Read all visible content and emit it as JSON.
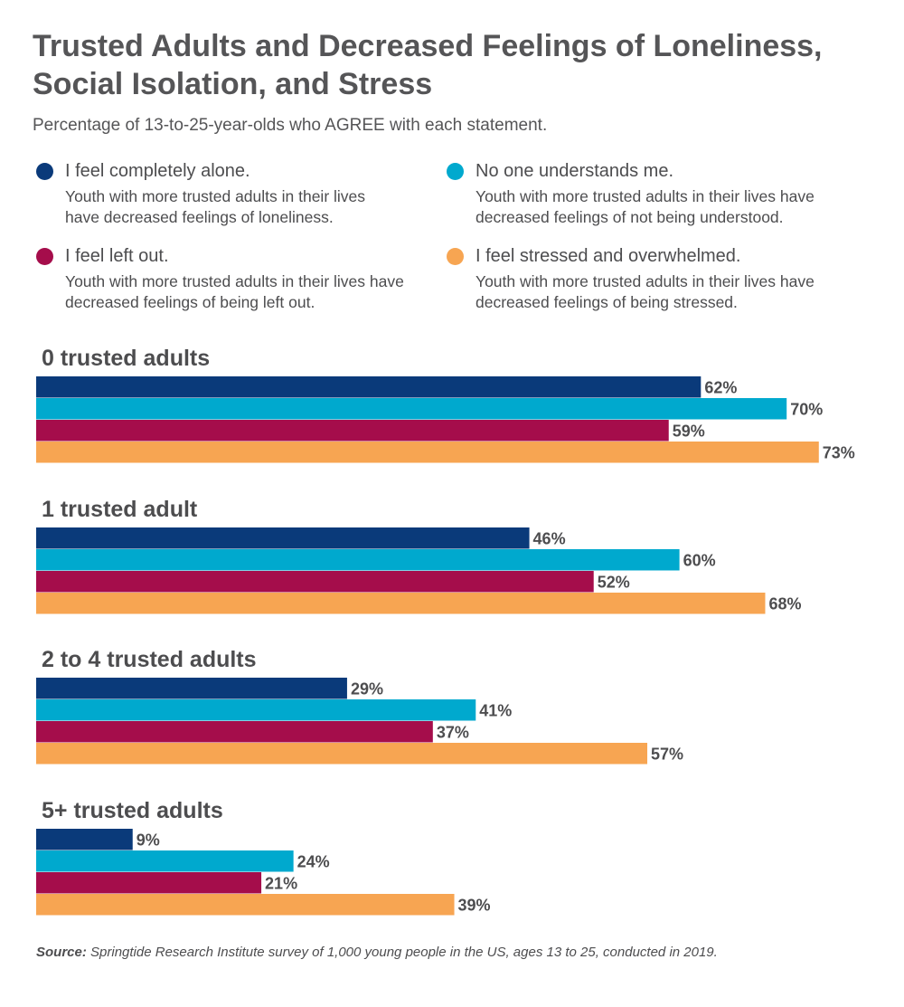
{
  "header": {
    "title": "Trusted Adults and Decreased Feelings of Loneliness, Social Isolation, and Stress",
    "subtitle": "Percentage of 13-to-25-year-olds who AGREE with each statement."
  },
  "legend": [
    {
      "label": "I feel completely alone.",
      "desc": "Youth with more trusted adults in their lives have decreased feelings of loneliness.",
      "color": "#0a3a7a"
    },
    {
      "label": "No one understands me.",
      "desc": "Youth with more trusted adults in their lives have decreased feelings of not being understood.",
      "color": "#00a9ce"
    },
    {
      "label": "I feel left out.",
      "desc": "Youth with more trusted adults in their lives have decreased feelings of being left out.",
      "color": "#a50d4b"
    },
    {
      "label": "I feel stressed and overwhelmed.",
      "desc": "Youth with more trusted adults in their lives have decreased feelings of being stressed.",
      "color": "#f7a552"
    }
  ],
  "chart_data": {
    "type": "bar",
    "orientation": "horizontal",
    "categories": [
      "0 trusted adults",
      "1 trusted adult",
      "2 to 4 trusted adults",
      "5+ trusted adults"
    ],
    "series": [
      {
        "name": "I feel completely alone.",
        "values": [
          62,
          46,
          29,
          9
        ],
        "color": "#0a3a7a"
      },
      {
        "name": "No one understands me.",
        "values": [
          70,
          60,
          41,
          24
        ],
        "color": "#00a9ce"
      },
      {
        "name": "I feel left out.",
        "values": [
          59,
          52,
          37,
          21
        ],
        "color": "#a50d4b"
      },
      {
        "name": "I feel stressed and overwhelmed.",
        "values": [
          73,
          68,
          57,
          39
        ],
        "color": "#f7a552"
      }
    ],
    "value_suffix": "%",
    "grid": false,
    "legend_position": "top"
  },
  "footer": {
    "source_label": "Source:",
    "source_text": " Springtide Research Institute survey of 1,000 young people in the US, ages 13 to 25, conducted in 2019."
  }
}
